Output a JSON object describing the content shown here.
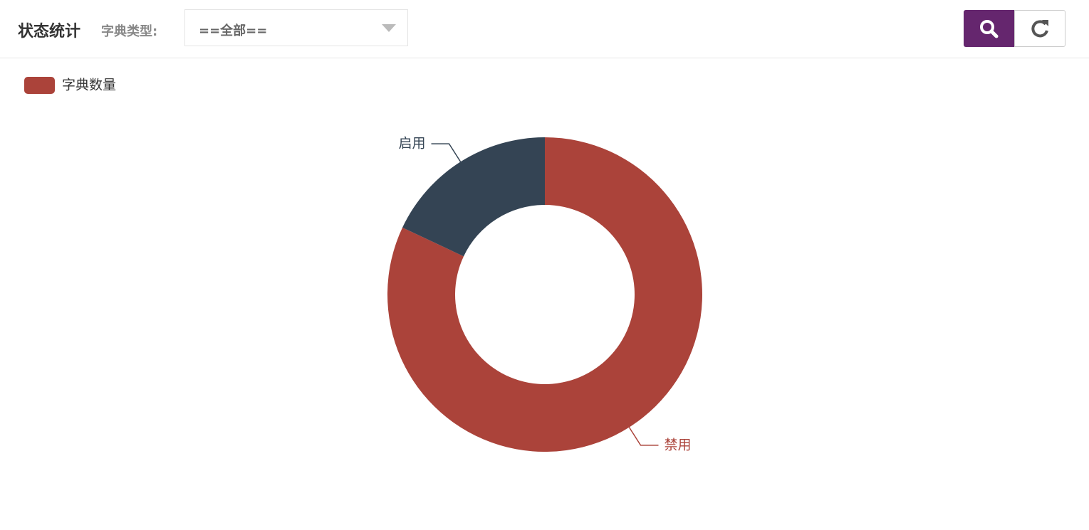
{
  "header": {
    "title": "状态统计",
    "filter_label": "字典类型:",
    "select_value": "==全部=="
  },
  "chart_data": {
    "type": "donut",
    "series_name": "字典数量",
    "categories": [
      "禁用",
      "启用"
    ],
    "values": [
      82,
      18
    ],
    "colors": [
      "#ab433a",
      "#344454"
    ]
  }
}
